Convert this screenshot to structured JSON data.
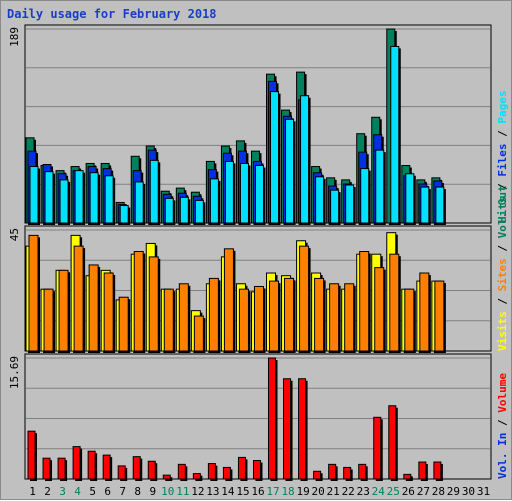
{
  "title": "Daily usage for February 2018",
  "colors": {
    "background": "#c0c0c0",
    "hits": "#00805c",
    "files": "#0030e0",
    "pages": "#00e0ff",
    "visits": "#ffff00",
    "sites": "#ff8000",
    "volume": "#ff0000",
    "panel_border": "#000000",
    "gridline": "#808080"
  },
  "legends": {
    "panel1": [
      {
        "text": "Hits",
        "color": "#00805c"
      },
      {
        "text": "Files",
        "color": "#0030e0"
      },
      {
        "text": "Pages",
        "color": "#00e0ff"
      }
    ],
    "panel2": [
      {
        "text": "Visits",
        "color": "#ffff00"
      },
      {
        "text": "Sites",
        "color": "#ff8000"
      },
      {
        "text": "Vol. Out",
        "color": "#00805c"
      }
    ],
    "panel3": [
      {
        "text": "Vol. In",
        "color": "#0030e0"
      },
      {
        "text": "Volume",
        "color": "#ff0000"
      }
    ]
  },
  "chart_data": [
    {
      "type": "bar",
      "panel": "hits-files-pages",
      "categories": [
        "1",
        "2",
        "3",
        "4",
        "5",
        "6",
        "7",
        "8",
        "9",
        "10",
        "11",
        "12",
        "13",
        "14",
        "15",
        "16",
        "17",
        "18",
        "19",
        "20",
        "21",
        "22",
        "23",
        "24",
        "25",
        "26",
        "27",
        "28",
        "29",
        "30",
        "31"
      ],
      "max_label": "189",
      "ylim": [
        0,
        189
      ],
      "series": [
        {
          "name": "Hits",
          "values": [
            83,
            56,
            51,
            55,
            58,
            58,
            20,
            65,
            75,
            31,
            34,
            30,
            60,
            75,
            80,
            70,
            145,
            110,
            147,
            55,
            44,
            42,
            87,
            103,
            189,
            56,
            42,
            44,
            0,
            0,
            0
          ]
        },
        {
          "name": "Files",
          "values": [
            70,
            57,
            48,
            51,
            55,
            53,
            18,
            51,
            71,
            28,
            29,
            26,
            52,
            68,
            70,
            60,
            138,
            104,
            120,
            49,
            36,
            38,
            69,
            86,
            0,
            46,
            38,
            41,
            0,
            0,
            0
          ]
        },
        {
          "name": "Pages",
          "values": [
            55,
            50,
            42,
            51,
            49,
            46,
            17,
            40,
            61,
            24,
            25,
            22,
            43,
            60,
            58,
            56,
            128,
            101,
            124,
            45,
            32,
            37,
            53,
            71,
            172,
            48,
            35,
            35,
            0,
            0,
            0
          ]
        }
      ]
    },
    {
      "type": "bar",
      "panel": "visits-sites",
      "categories": [
        "1",
        "2",
        "3",
        "4",
        "5",
        "6",
        "7",
        "8",
        "9",
        "10",
        "11",
        "12",
        "13",
        "14",
        "15",
        "16",
        "17",
        "18",
        "19",
        "20",
        "21",
        "22",
        "23",
        "24",
        "25",
        "26",
        "27",
        "28",
        "29",
        "30",
        "31"
      ],
      "max_label": "45",
      "ylim": [
        0,
        45
      ],
      "series": [
        {
          "name": "Visits",
          "values": [
            39,
            23,
            30,
            43,
            28,
            30,
            19,
            36,
            40,
            23,
            23,
            15,
            25,
            35,
            25,
            22,
            29,
            28,
            41,
            29,
            23,
            23,
            36,
            36,
            44,
            23,
            26,
            26,
            0,
            0,
            0
          ]
        },
        {
          "name": "Sites",
          "values": [
            43,
            23,
            30,
            39,
            32,
            29,
            20,
            37,
            35,
            23,
            25,
            13,
            27,
            38,
            23,
            24,
            26,
            27,
            39,
            27,
            25,
            25,
            37,
            31,
            36,
            23,
            29,
            26,
            0,
            0,
            0
          ]
        }
      ]
    },
    {
      "type": "bar",
      "panel": "volume",
      "categories": [
        "1",
        "2",
        "3",
        "4",
        "5",
        "6",
        "7",
        "8",
        "9",
        "10",
        "11",
        "12",
        "13",
        "14",
        "15",
        "16",
        "17",
        "18",
        "19",
        "20",
        "21",
        "22",
        "23",
        "24",
        "25",
        "26",
        "27",
        "28",
        "29",
        "30",
        "31"
      ],
      "max_label": "15.69",
      "ylim": [
        0,
        15.69
      ],
      "series": [
        {
          "name": "Volume",
          "values": [
            6.2,
            2.7,
            2.7,
            4.2,
            3.6,
            3.1,
            1.7,
            2.9,
            2.3,
            0.5,
            1.9,
            0.7,
            2.0,
            1.5,
            2.8,
            2.4,
            15.69,
            13.0,
            13.0,
            1.0,
            1.9,
            1.5,
            1.9,
            8.0,
            9.5,
            0.6,
            2.2,
            2.2,
            0,
            0,
            0
          ]
        }
      ]
    }
  ]
}
